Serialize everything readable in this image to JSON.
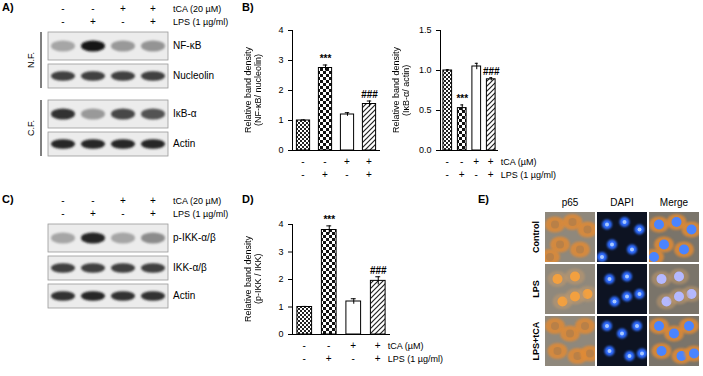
{
  "panels": {
    "A": {
      "label": "A)",
      "treatments": [
        {
          "label": "tCA (20 µM)",
          "marks": [
            "-",
            "-",
            "+",
            "+"
          ]
        },
        {
          "label": "LPS (1 µg/ml)",
          "marks": [
            "-",
            "+",
            "-",
            "+"
          ]
        }
      ],
      "groups": [
        {
          "label": "N.F.",
          "rows": [
            {
              "label": "NF-κB",
              "intensity": [
                0.35,
                0.9,
                0.4,
                0.42
              ]
            },
            {
              "label": "Nucleolin",
              "intensity": [
                0.75,
                0.75,
                0.75,
                0.75
              ]
            }
          ]
        },
        {
          "label": "C.F.",
          "rows": [
            {
              "label": "IκB-α",
              "intensity": [
                0.8,
                0.4,
                0.72,
                0.68
              ]
            },
            {
              "label": "Actin",
              "intensity": [
                0.85,
                0.85,
                0.85,
                0.85
              ]
            }
          ]
        }
      ]
    },
    "B": {
      "label": "B)"
    },
    "C": {
      "label": "C)",
      "treatments": [
        {
          "label": "tCA (20 µM)",
          "marks": [
            "-",
            "-",
            "+",
            "+"
          ]
        },
        {
          "label": "LPS (1 µg/ml)",
          "marks": [
            "-",
            "+",
            "-",
            "+"
          ]
        }
      ],
      "groups": [
        {
          "rows": [
            {
              "label": "p-IKK-α/β",
              "intensity": [
                0.35,
                0.85,
                0.35,
                0.45
              ]
            },
            {
              "label": "IKK-α/β",
              "intensity": [
                0.75,
                0.75,
                0.75,
                0.75
              ]
            },
            {
              "label": "Actin",
              "intensity": [
                0.8,
                0.85,
                0.8,
                0.8
              ]
            }
          ]
        }
      ]
    },
    "D": {
      "label": "D)"
    },
    "E": {
      "label": "E)",
      "columns": [
        "p65",
        "DAPI",
        "Merge"
      ],
      "rows": [
        "Control",
        "LPS",
        "LPS+tCA"
      ]
    }
  },
  "chart_data": [
    {
      "type": "bar",
      "y_label": [
        "Relative band density",
        "(NF-κB/ nucleolin)"
      ],
      "categories": [
        null,
        null,
        null,
        null
      ],
      "values": [
        1,
        2.75,
        1.2,
        1.55
      ],
      "errors": [
        0.02,
        0.1,
        0.06,
        0.1
      ],
      "ylim": [
        0,
        4
      ],
      "yticks": [
        0,
        1,
        2,
        3,
        4
      ],
      "tick_labels": "y",
      "annotations": [
        {
          "index": 1,
          "text": "***"
        },
        {
          "index": 3,
          "text": "###"
        }
      ],
      "conditions": [
        {
          "marks": [
            "-",
            "-",
            "+",
            "+"
          ]
        },
        {
          "marks": [
            "-",
            "+",
            "-",
            "+"
          ]
        }
      ]
    },
    {
      "type": "bar",
      "y_label": [
        "Relative band density",
        "(IκB-α/ actin)"
      ],
      "categories": [
        null,
        null,
        null,
        null
      ],
      "values": [
        1,
        0.53,
        1.05,
        0.89
      ],
      "errors": [
        0.01,
        0.04,
        0.04,
        0.02
      ],
      "ylim": [
        0,
        1.5
      ],
      "yticks": [
        {
          "value": 0,
          "label": "0.0"
        },
        0.5,
        {
          "value": 1,
          "label": "1.0"
        },
        1.5
      ],
      "tick_labels": "y",
      "annotations": [
        {
          "index": 1,
          "text": "***"
        },
        {
          "index": 3,
          "text": "###"
        }
      ],
      "conditions": [
        {
          "label": "tCA (µM)",
          "marks": [
            "-",
            "-",
            "+",
            "+"
          ]
        },
        {
          "label": "LPS (1 µg/ml)",
          "marks": [
            "-",
            "+",
            "-",
            "+"
          ]
        }
      ]
    },
    {
      "type": "bar",
      "y_label": [
        "Relative band density",
        "(p-IKK / IKK)"
      ],
      "categories": [
        null,
        null,
        null,
        null
      ],
      "values": [
        1,
        3.8,
        1.2,
        1.95
      ],
      "errors": [
        0.02,
        0.15,
        0.1,
        0.15
      ],
      "ylim": [
        0,
        4
      ],
      "yticks": [
        0,
        1,
        2,
        3,
        4
      ],
      "tick_labels": "y",
      "annotations": [
        {
          "index": 1,
          "text": "***"
        },
        {
          "index": 3,
          "text": "###"
        }
      ],
      "conditions": [
        {
          "label": "tCA (µM)",
          "marks": [
            "-",
            "-",
            "+",
            "+"
          ]
        },
        {
          "label": "LPS (1 µg/ml)",
          "marks": [
            "-",
            "+",
            "-",
            "+"
          ]
        }
      ]
    }
  ]
}
